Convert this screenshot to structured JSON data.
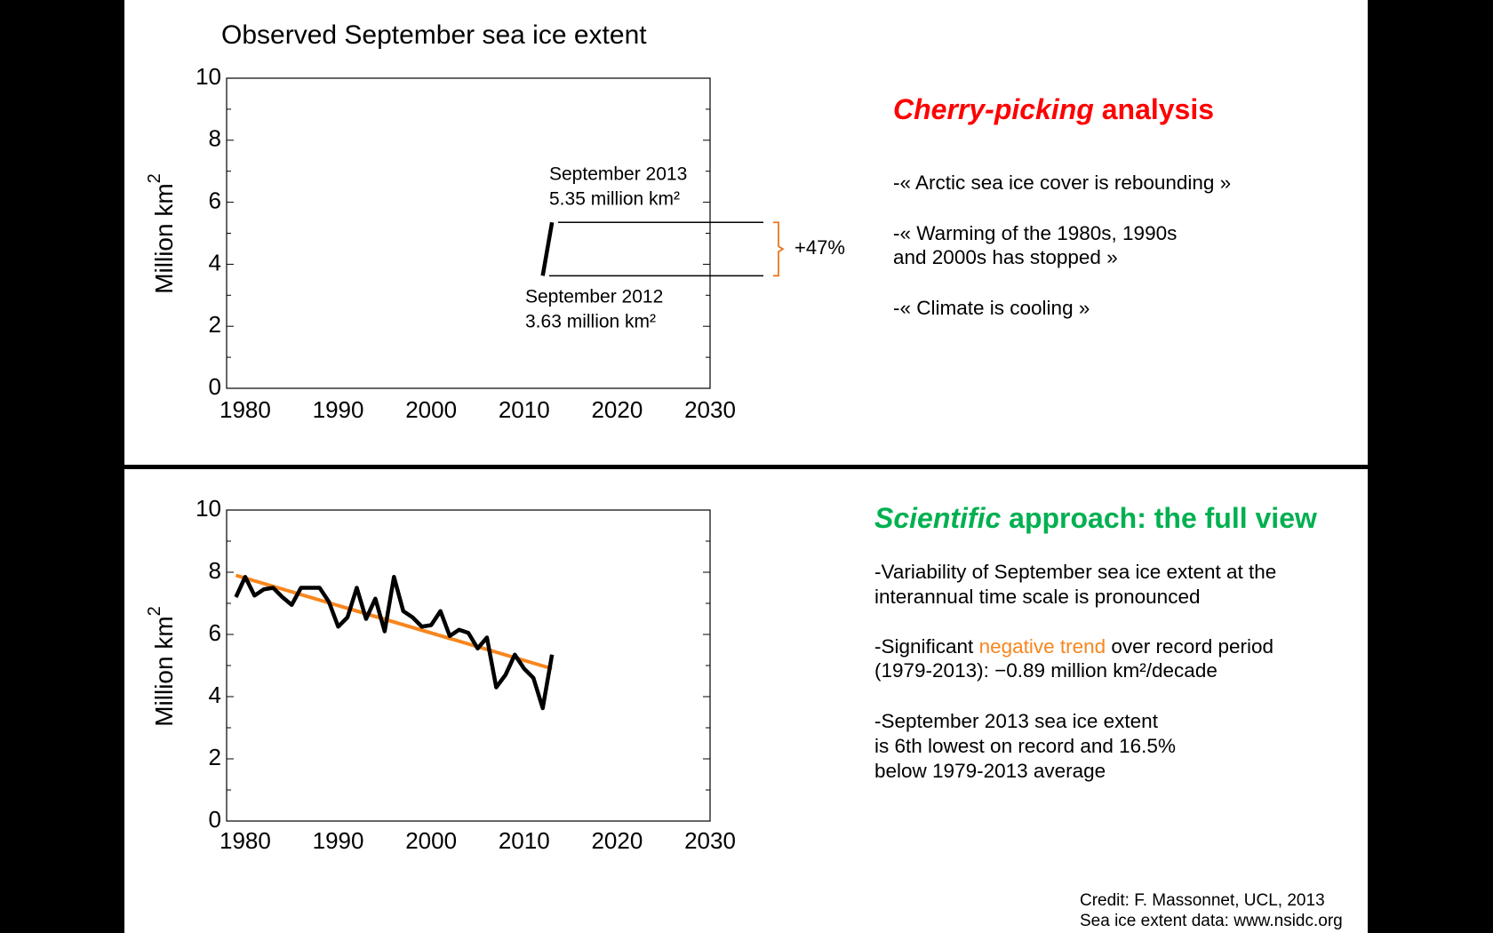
{
  "chart_data": [
    {
      "type": "line",
      "title": "Observed September sea ice extent",
      "y_label": "Million km",
      "y_label_sup": "2",
      "x": [
        2012,
        2013
      ],
      "values": [
        3.63,
        5.35
      ],
      "color": "#000000",
      "point_labels": [
        "September 2012",
        "September 2013"
      ],
      "value_labels": [
        "3.63 million km²",
        "5.35 million km²"
      ],
      "change_label": "+47%",
      "change_color": "#e87722",
      "xlim": [
        1978,
        2030
      ],
      "xticks": [
        1980,
        1990,
        2000,
        2010,
        2020,
        2030
      ],
      "ylim": [
        0,
        10
      ],
      "yticks": [
        0,
        2,
        4,
        6,
        8,
        10
      ]
    },
    {
      "type": "line",
      "y_label": "Million km",
      "y_label_sup": "2",
      "x": [
        1979,
        1980,
        1981,
        1982,
        1983,
        1984,
        1985,
        1986,
        1987,
        1988,
        1989,
        1990,
        1991,
        1992,
        1993,
        1994,
        1995,
        1996,
        1997,
        1998,
        1999,
        2000,
        2001,
        2002,
        2003,
        2004,
        2005,
        2006,
        2007,
        2008,
        2009,
        2010,
        2011,
        2012,
        2013
      ],
      "values": [
        7.2,
        7.85,
        7.25,
        7.45,
        7.5,
        7.2,
        6.95,
        7.5,
        7.5,
        7.5,
        7.05,
        6.25,
        6.55,
        7.5,
        6.5,
        7.15,
        6.1,
        7.85,
        6.75,
        6.55,
        6.25,
        6.3,
        6.75,
        5.95,
        6.15,
        6.05,
        5.55,
        5.9,
        4.3,
        4.7,
        5.35,
        4.9,
        4.6,
        3.63,
        5.35
      ],
      "color": "#000000",
      "trend": {
        "x": [
          1979,
          2013
        ],
        "values": [
          7.9,
          4.9
        ],
        "color": "#f7861e"
      },
      "xlim": [
        1978,
        2030
      ],
      "xticks": [
        1980,
        1990,
        2000,
        2010,
        2020,
        2030
      ],
      "ylim": [
        0,
        10
      ],
      "yticks": [
        0,
        2,
        4,
        6,
        8,
        10
      ]
    }
  ],
  "panels": [
    {
      "heading": [
        "Cherry-picking",
        " analysis"
      ],
      "heading_color": "#ff0000",
      "bullets": [
        [
          "-« Arctic sea ice cover is rebounding »"
        ],
        [
          "-« Warming of the 1980s, 1990s",
          "and 2000s has stopped »"
        ],
        [
          "-« Climate is cooling »"
        ]
      ]
    },
    {
      "heading": [
        "Scientific",
        " approach: the full view"
      ],
      "heading_color": "#00b050",
      "bullets": [
        [
          "-Variability of September sea ice extent at the",
          "interannual time scale is pronounced"
        ],
        [
          [
            "-Significant ",
            "negative trend",
            " over record period"
          ],
          "(1979-2013): −0.89 million km²/decade"
        ],
        [
          "-September 2013 sea ice extent",
          "is 6th lowest on record and 16.5%",
          "below 1979-2013 average"
        ]
      ]
    }
  ],
  "credit": [
    "Credit: F. Massonnet, UCL, 2013",
    "Sea ice extent data: www.nsidc.org"
  ]
}
